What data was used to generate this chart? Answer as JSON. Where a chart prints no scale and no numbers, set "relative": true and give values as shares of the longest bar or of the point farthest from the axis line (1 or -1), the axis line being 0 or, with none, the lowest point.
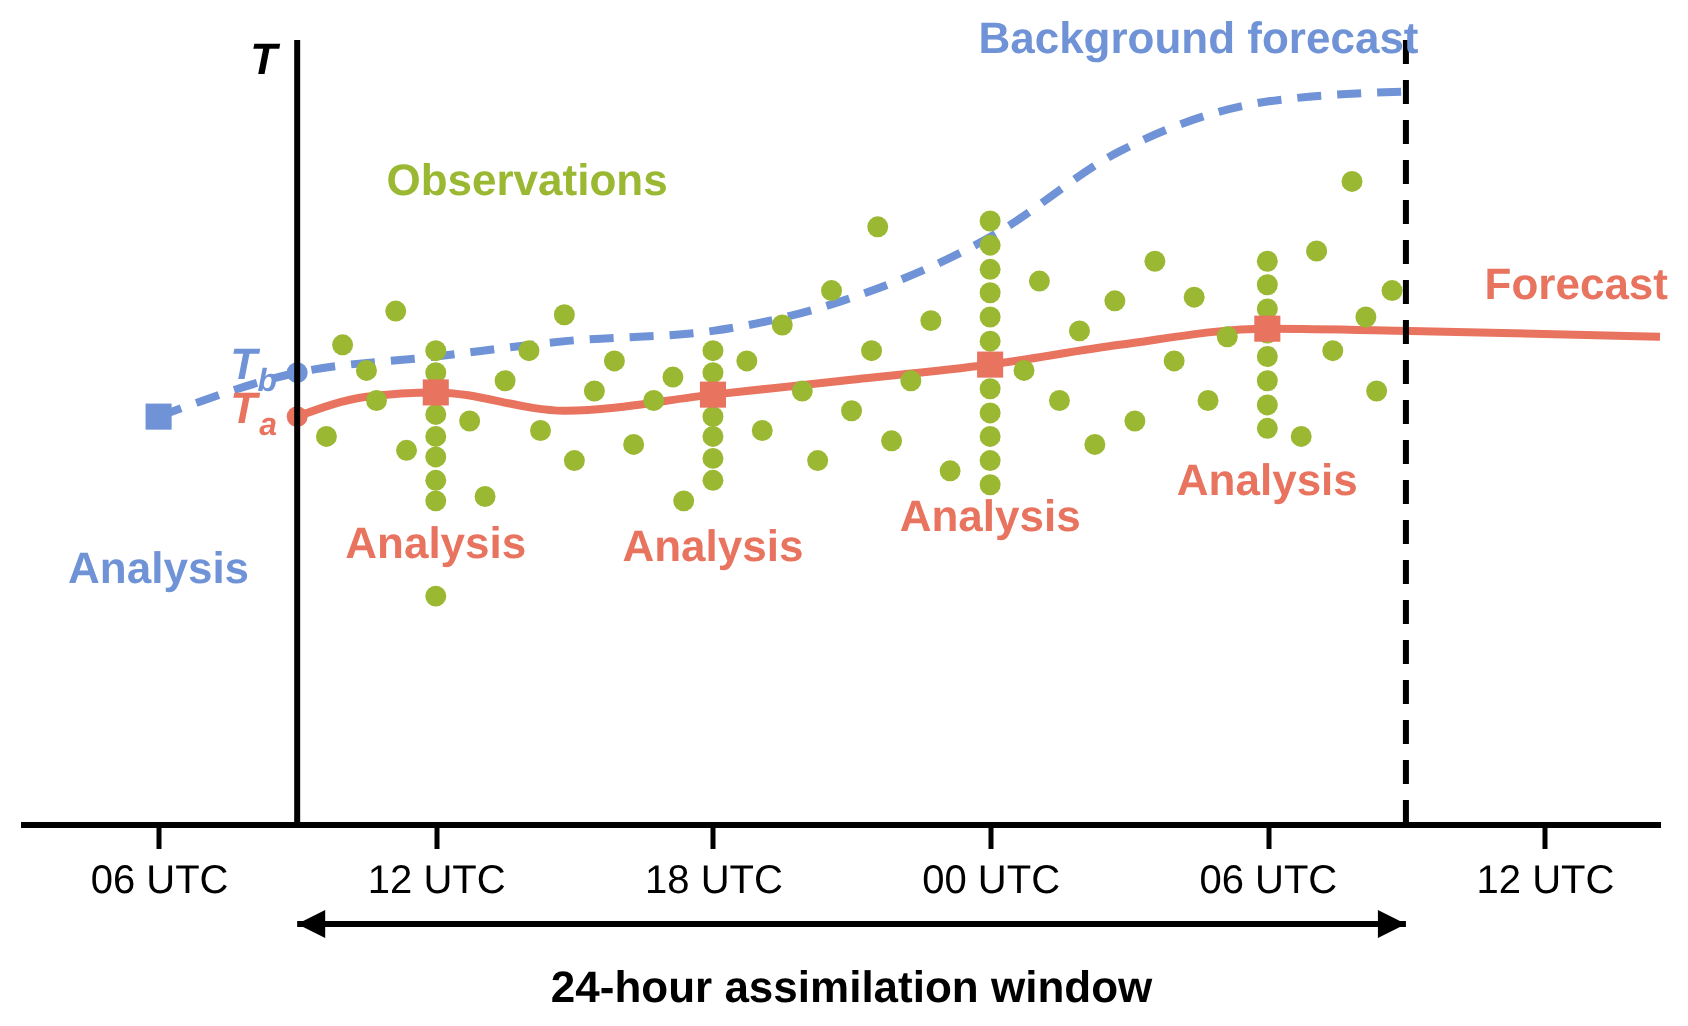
{
  "chart_data": {
    "type": "line",
    "relative": true,
    "ylabel": "T",
    "grid": false,
    "xlim": [
      "--01-01T03:00",
      "--01-02T14:30"
    ],
    "xticks": [
      {
        "value": "--01-01T06:00",
        "label": "06 UTC"
      },
      {
        "value": "--01-01T12:00",
        "label": "12 UTC"
      },
      {
        "value": "--01-01T18:00",
        "label": "18 UTC"
      },
      {
        "value": "--01-02T00:00",
        "label": "00 UTC"
      },
      {
        "value": "--01-02T06:00",
        "label": "06 UTC"
      },
      {
        "value": "--01-02T12:00",
        "label": "12 UTC"
      }
    ],
    "series": [
      {
        "name": "Background forecast",
        "line_style": "dashed",
        "color": "#6f93d6",
        "x": [
          "--01-01T06:00",
          "--01-01T09:00",
          "--01-01T12:00",
          "--01-01T14:48",
          "--01-01T18:00",
          "--01-01T20:48",
          "--01-02T00:00",
          "--01-02T02:48",
          "--01-02T06:00",
          "--01-02T09:06"
        ],
        "values": [
          0.556,
          0.616,
          0.638,
          0.659,
          0.673,
          0.714,
          0.801,
          0.918,
          0.986,
          1
        ]
      },
      {
        "name": "Forecast",
        "line_style": "solid",
        "color": "#e8735f",
        "x": [
          "--01-01T09:00",
          "--01-01T10:30",
          "--01-01T12:00",
          "--01-01T14:48",
          "--01-01T18:00",
          "--01-01T20:48",
          "--01-02T00:00",
          "--01-02T02:48",
          "--01-02T06:00",
          "--01-02T09:06",
          "--01-02T14:30"
        ],
        "values": [
          0.556,
          0.583,
          0.589,
          0.564,
          0.586,
          0.605,
          0.627,
          0.654,
          0.676,
          0.673,
          0.665
        ]
      },
      {
        "name": "Observations",
        "type": "scatter",
        "marker": "circle",
        "color": "#9ab832",
        "x": [
          "--01-01T12:00",
          "--01-01T12:00",
          "--01-01T12:00",
          "--01-01T12:00",
          "--01-01T12:00",
          "--01-01T12:00",
          "--01-01T12:00",
          "--01-01T12:00",
          "--01-01T18:00",
          "--01-01T18:00",
          "--01-01T18:00",
          "--01-01T18:00",
          "--01-01T18:00",
          "--01-01T18:00",
          "--01-02T00:00",
          "--01-02T00:00",
          "--01-02T00:00",
          "--01-02T00:00",
          "--01-02T00:00",
          "--01-02T00:00",
          "--01-02T00:00",
          "--01-02T00:00",
          "--01-02T00:00",
          "--01-02T00:00",
          "--01-02T00:00",
          "--01-02T06:00",
          "--01-02T06:00",
          "--01-02T06:00",
          "--01-02T06:00",
          "--01-02T06:00",
          "--01-02T06:00",
          "--01-02T06:00",
          "--01-02T06:00",
          "--01-01T09:38",
          "--01-01T09:59",
          "--01-01T10:30",
          "--01-01T10:43",
          "--01-01T11:08",
          "--01-01T11:22",
          "--01-01T12:44",
          "--01-01T13:04",
          "--01-01T13:30",
          "--01-01T14:01",
          "--01-01T14:16",
          "--01-01T14:47",
          "--01-01T15:00",
          "--01-01T15:26",
          "--01-01T15:52",
          "--01-01T16:17",
          "--01-01T16:43",
          "--01-01T17:08",
          "--01-01T17:22",
          "--01-01T18:44",
          "--01-01T19:04",
          "--01-01T19:30",
          "--01-01T19:56",
          "--01-01T20:16",
          "--01-01T20:34",
          "--01-01T21:00",
          "--01-01T21:26",
          "--01-01T21:34",
          "--01-01T21:52",
          "--01-01T22:17",
          "--01-01T22:43",
          "--01-01T23:08",
          "--01-02T00:44",
          "--01-02T01:04",
          "--01-02T01:30",
          "--01-02T01:56",
          "--01-02T02:16",
          "--01-02T02:42",
          "--01-02T03:08",
          "--01-02T03:34",
          "--01-02T03:59",
          "--01-02T04:25",
          "--01-02T04:43",
          "--01-02T05:08",
          "--01-02T06:44",
          "--01-02T07:04",
          "--01-02T07:25",
          "--01-02T07:50",
          "--01-02T08:08",
          "--01-02T08:22",
          "--01-02T08:42"
        ],
        "values": [
          0.646,
          0.616,
          0.559,
          0.529,
          0.501,
          0.469,
          0.441,
          0.311,
          0.646,
          0.616,
          0.556,
          0.529,
          0.499,
          0.469,
          0.823,
          0.79,
          0.757,
          0.725,
          0.692,
          0.659,
          0.594,
          0.561,
          0.529,
          0.496,
          0.463,
          0.768,
          0.736,
          0.703,
          0.67,
          0.638,
          0.605,
          0.572,
          0.54,
          0.529,
          0.654,
          0.619,
          0.578,
          0.7,
          0.51,
          0.55,
          0.447,
          0.605,
          0.646,
          0.537,
          0.695,
          0.496,
          0.591,
          0.632,
          0.518,
          0.578,
          0.61,
          0.441,
          0.632,
          0.537,
          0.681,
          0.591,
          0.496,
          0.728,
          0.564,
          0.646,
          0.815,
          0.523,
          0.605,
          0.687,
          0.482,
          0.619,
          0.741,
          0.578,
          0.673,
          0.518,
          0.714,
          0.55,
          0.768,
          0.632,
          0.719,
          0.578,
          0.665,
          0.529,
          0.782,
          0.646,
          0.877,
          0.692,
          0.591,
          0.728
        ]
      },
      {
        "type": "scatter",
        "marker": "square",
        "color": "#e8735f",
        "x": [
          "--01-01T12:00",
          "--01-01T18:00",
          "--01-02T00:00",
          "--01-02T06:00"
        ],
        "values": [
          0.589,
          0.586,
          0.627,
          0.676
        ]
      },
      {
        "type": "scatter",
        "marker": "square",
        "color": "#6f93d6",
        "x": [
          "--01-01T06:00"
        ],
        "values": [
          0.556
        ]
      },
      {
        "type": "scatter",
        "marker": "circle",
        "color": "#6f93d6",
        "x": [
          "--01-01T09:00"
        ],
        "values": [
          0.616
        ]
      },
      {
        "type": "scatter",
        "marker": "circle",
        "color": "#e8735f",
        "x": [
          "--01-01T09:00"
        ],
        "values": [
          0.556
        ]
      }
    ],
    "annotations": [
      {
        "text": "Analysis",
        "x": "--01-01T06:00",
        "y": 0.556
      },
      {
        "text": "Analysis",
        "x": "--01-01T12:00",
        "y": 0.589
      },
      {
        "text": "Analysis",
        "x": "--01-01T18:00",
        "y": 0.586
      },
      {
        "text": "Analysis",
        "x": "--01-02T00:00",
        "y": 0.627
      },
      {
        "text": "Analysis",
        "x": "--01-02T06:00",
        "y": 0.676
      },
      {
        "text": "T$_{b}$",
        "x": "--01-01T09:00",
        "y": 0.616
      },
      {
        "text": "T$_{a}$",
        "x": "--01-01T09:00",
        "y": 0.556
      },
      "24-hour assimilation window"
    ],
    "ref_lines": [
      {
        "axis": "x",
        "value": "--01-01T09:00",
        "line_style": "solid",
        "color": "#000000"
      },
      {
        "axis": "x",
        "value": "--01-02T09:00",
        "line_style": "dashed",
        "color": "#000000"
      }
    ]
  }
}
